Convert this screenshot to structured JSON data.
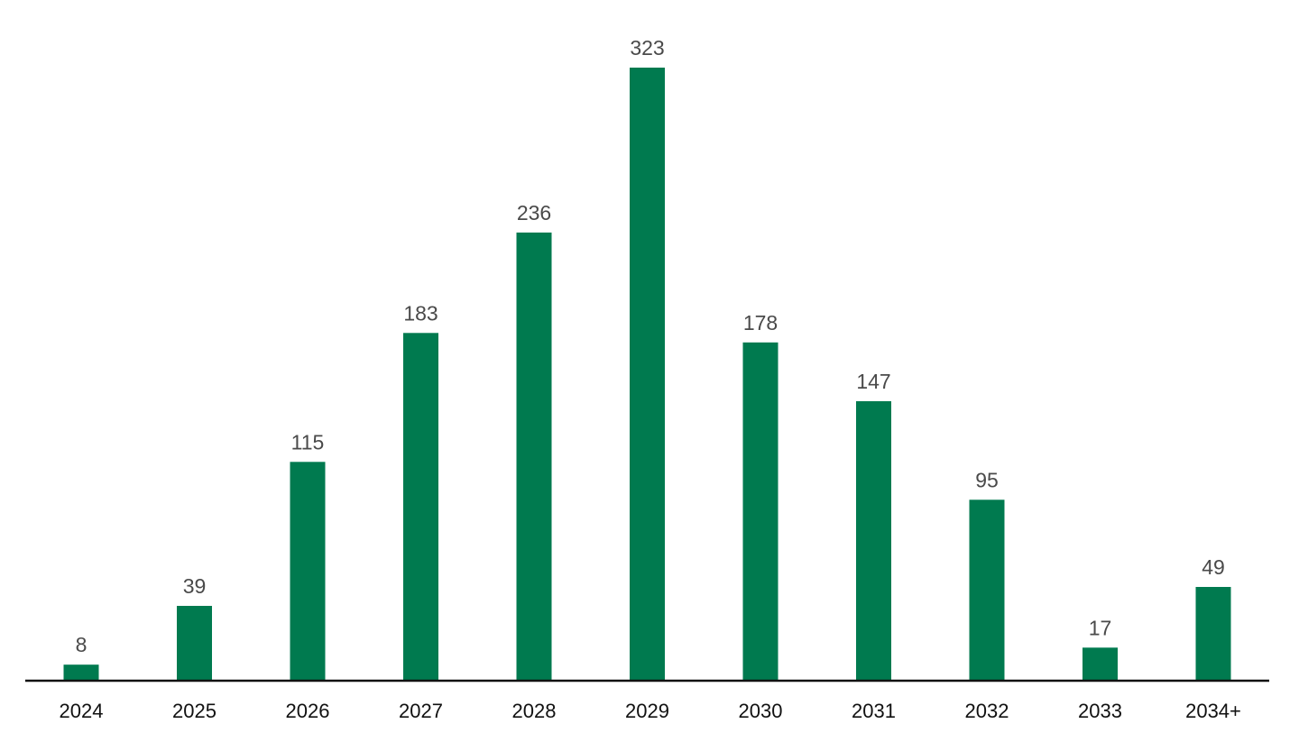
{
  "chart_data": {
    "type": "bar",
    "title": "",
    "xlabel": "",
    "ylabel": "",
    "categories": [
      "2024",
      "2025",
      "2026",
      "2027",
      "2028",
      "2029",
      "2030",
      "2031",
      "2032",
      "2033",
      "2034+"
    ],
    "values": [
      8,
      39,
      115,
      183,
      236,
      323,
      178,
      147,
      95,
      17,
      49
    ],
    "ylim": [
      0,
      323
    ],
    "grid": false,
    "legend": "none",
    "colors": {
      "bar": "#007A4F",
      "value_label": "#4a4a4a",
      "axis": "#111111",
      "tick_label": "#111111"
    }
  }
}
